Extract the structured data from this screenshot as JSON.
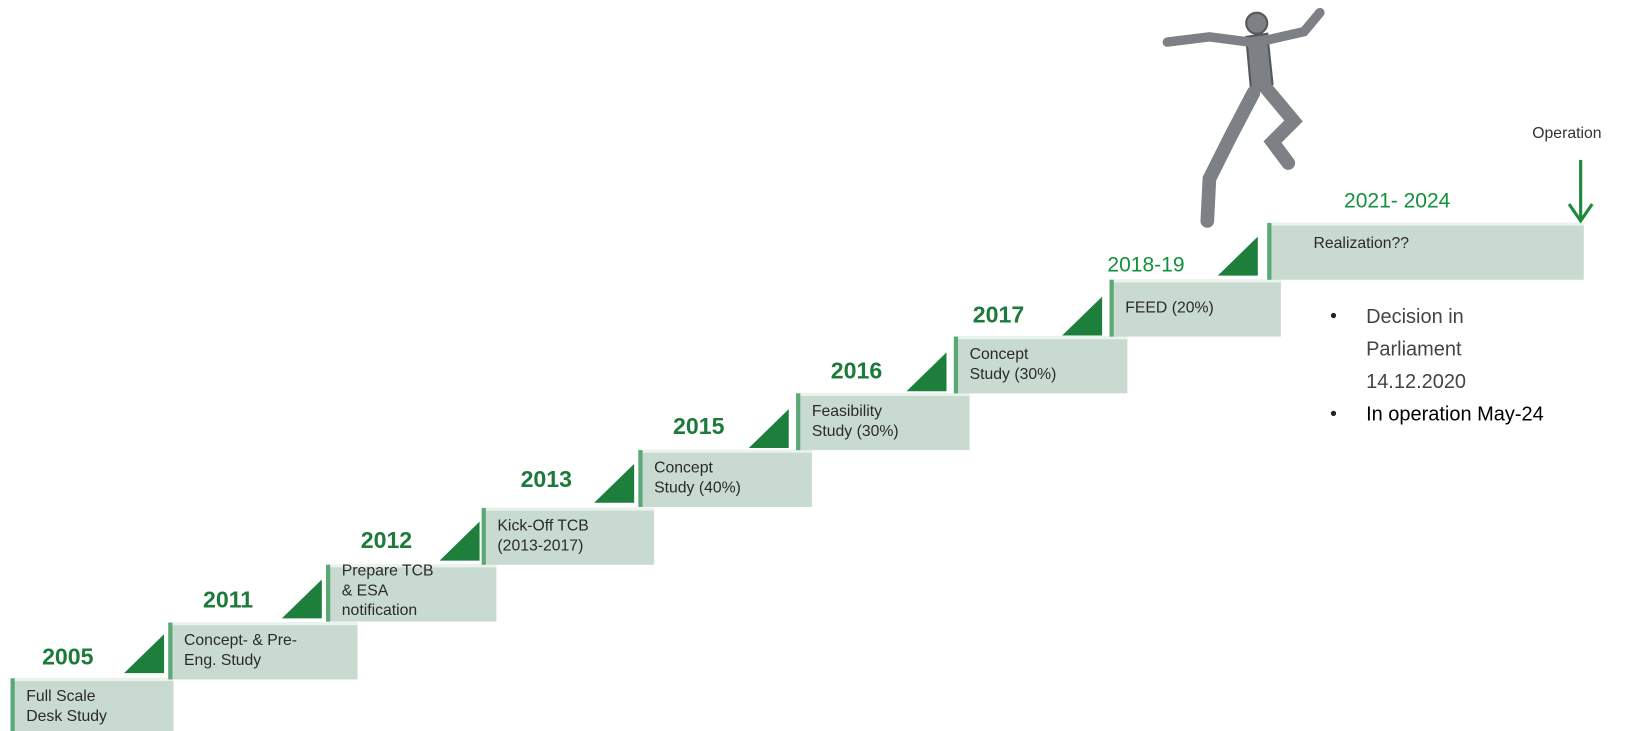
{
  "steps": [
    {
      "year": "2005",
      "label": [
        "Full Scale",
        "Desk Study"
      ]
    },
    {
      "year": "2011",
      "label": [
        "Concept- & Pre-",
        "Eng. Study"
      ]
    },
    {
      "year": "2012",
      "label": [
        "Prepare TCB",
        "& ESA",
        "notification"
      ]
    },
    {
      "year": "2013",
      "label": [
        "Kick-Off TCB",
        "(2013-2017)"
      ]
    },
    {
      "year": "2015",
      "label": [
        "Concept",
        "Study (40%)"
      ]
    },
    {
      "year": "2016",
      "label": [
        "Feasibility",
        "Study (30%)"
      ]
    },
    {
      "year": "2017",
      "label": [
        "Concept",
        "Study (30%)"
      ]
    },
    {
      "year": "2018-19",
      "label": [
        "FEED (20%)"
      ]
    },
    {
      "year": "2021- 2024",
      "label": [
        "Realization??"
      ]
    }
  ],
  "operation": "Operation",
  "bullets": [
    [
      "Decision in",
      "Parliament",
      "14.12.2020"
    ],
    [
      "In operation May-24"
    ]
  ]
}
